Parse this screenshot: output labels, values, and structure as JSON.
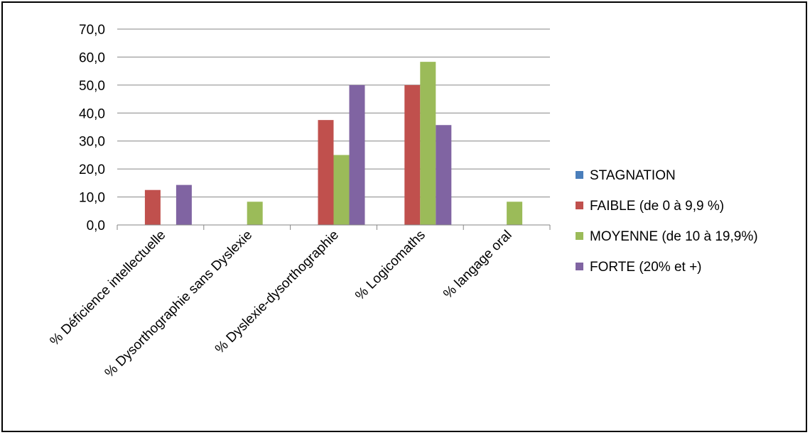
{
  "chart_data": {
    "type": "bar",
    "categories": [
      "% Déficience intellectuelle",
      "% Dysorthographie sans Dyslexie",
      "% Dyslexie-dysorthographie",
      "% Logicomaths",
      "% langage oral"
    ],
    "series": [
      {
        "name": "STAGNATION",
        "color": "#4A7EBB",
        "values": [
          0,
          0,
          0,
          0,
          0
        ]
      },
      {
        "name": "FAIBLE (de 0 à 9,9 %)",
        "color": "#C0504D",
        "values": [
          12.5,
          0,
          37.5,
          50.0,
          0
        ]
      },
      {
        "name": "MOYENNE (de 10 à 19,9%)",
        "color": "#9BBB59",
        "values": [
          0,
          8.3,
          25.0,
          58.3,
          8.3
        ]
      },
      {
        "name": "FORTE (20% et +)",
        "color": "#8064A2",
        "values": [
          14.3,
          0,
          50.0,
          35.7,
          0
        ]
      }
    ],
    "ylim": [
      0,
      70
    ],
    "yticks": [
      "0,0",
      "10,0",
      "20,0",
      "30,0",
      "40,0",
      "50,0",
      "60,0",
      "70,0"
    ],
    "grid": true,
    "legend_position": "right"
  }
}
